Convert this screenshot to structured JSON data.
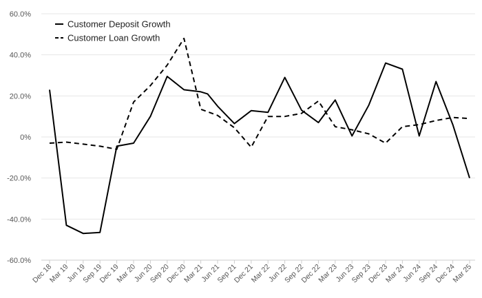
{
  "chart_data": {
    "type": "line",
    "categories": [
      "Dec 18",
      "Mar 19",
      "Jun 19",
      "Sep 19",
      "Dec 19",
      "Mar 20",
      "Jun 20",
      "Sep 20",
      "Dec 20",
      "Mar 21",
      "Jun 21",
      "Sep 21",
      "Dec 21",
      "Mar 22",
      "Jun 22",
      "Sep 22",
      "Dec 22",
      "Mar 23",
      "Jun 23",
      "Sep 23",
      "Dec 23",
      "Mar 24",
      "Jun 24",
      "Sep 24",
      "Dec 24",
      "Mar 25"
    ],
    "x_plot_positions": [
      0,
      1,
      2,
      3,
      4,
      5,
      6,
      7,
      8,
      9,
      10,
      11,
      12,
      13,
      14,
      15,
      16,
      17,
      18,
      19,
      20,
      21,
      22,
      23,
      24,
      25
    ],
    "series": [
      {
        "name": "Customer Deposit Growth",
        "style": "solid",
        "color": "#000000",
        "x": [
          0,
          1,
          2,
          3,
          4,
          5,
          6,
          7,
          8,
          9,
          9.4,
          10,
          11,
          12,
          13,
          14,
          15,
          16,
          17,
          18,
          19,
          20,
          21,
          22,
          23,
          24,
          25
        ],
        "values": [
          23,
          -43,
          -47,
          -46.5,
          -4.5,
          -3,
          10,
          29.5,
          23,
          22,
          21,
          15,
          6.5,
          12.8,
          12,
          29,
          13,
          7,
          18,
          0.5,
          15.5,
          36,
          33,
          0.5,
          27,
          6,
          -20
        ]
      },
      {
        "name": "Customer Loan Growth",
        "style": "dashed",
        "color": "#000000",
        "x": [
          0,
          1,
          2,
          3,
          4,
          5,
          6,
          7,
          8,
          9,
          10,
          11,
          12,
          13,
          14,
          15,
          16,
          17,
          18,
          19,
          20,
          21,
          22,
          23,
          24,
          25
        ],
        "values": [
          -3,
          -2.5,
          -3.5,
          -4.5,
          -6,
          17,
          25,
          35,
          48,
          13.5,
          10.5,
          4.5,
          -5,
          10,
          10,
          11.5,
          17.5,
          5,
          3.5,
          1.5,
          -3,
          5,
          6,
          8,
          9.5,
          9
        ]
      }
    ],
    "y_ticks": [
      "60.0%",
      "40.0%",
      "20.0%",
      "0%",
      "-20.0%",
      "-40.0%",
      "-60.0%"
    ],
    "y_tick_values": [
      60,
      40,
      20,
      0,
      -20,
      -40,
      -60
    ],
    "ylim": [
      -60,
      60
    ],
    "title": "",
    "xlabel": "",
    "ylabel": "",
    "grid": "horizontal",
    "legend_position": "top-left"
  }
}
